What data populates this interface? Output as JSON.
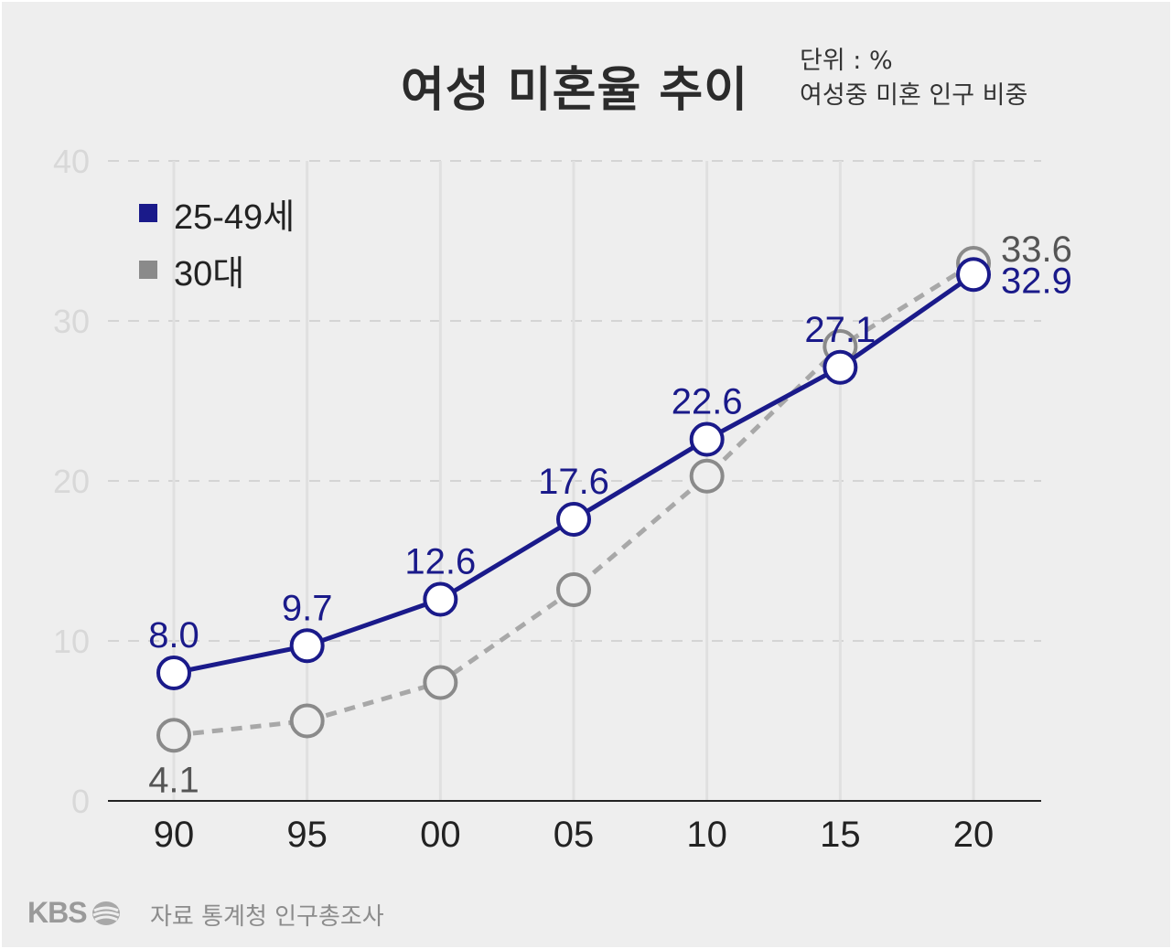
{
  "title": "여성 미혼율 추이",
  "unit_line1": "단위 : %",
  "unit_line2": "여성중 미혼 인구 비중",
  "footer": {
    "logo_text": "KBS",
    "source": "자료 통계청 인구총조사"
  },
  "colors": {
    "series_main": "#1a1a8a",
    "series_secondary": "#8a8a8a",
    "grid": "#d4d4d4",
    "axis_tick_label": "#d8d8d8",
    "background": "#eeeeee"
  },
  "chart_data": {
    "type": "line",
    "categories": [
      "90",
      "95",
      "00",
      "05",
      "10",
      "15",
      "20"
    ],
    "ylim": [
      0,
      40
    ],
    "yticks": [
      "0",
      "10",
      "20",
      "30",
      "40"
    ],
    "grid": true,
    "legend_position": "top-left",
    "series": [
      {
        "name": "25-49세",
        "values": [
          8.0,
          9.7,
          12.6,
          17.6,
          22.6,
          27.1,
          32.9
        ],
        "labels": [
          "8.0",
          "9.7",
          "12.6",
          "17.6",
          "22.6",
          "27.1",
          "32.9"
        ],
        "color": "#1a1a8a",
        "style": "solid"
      },
      {
        "name": "30대",
        "values": [
          4.1,
          5.0,
          7.4,
          13.2,
          20.3,
          28.4,
          33.6
        ],
        "labels": [
          "4.1",
          "",
          "",
          "",
          "",
          "",
          "33.6"
        ],
        "color": "#8a8a8a",
        "style": "dashed"
      }
    ]
  }
}
